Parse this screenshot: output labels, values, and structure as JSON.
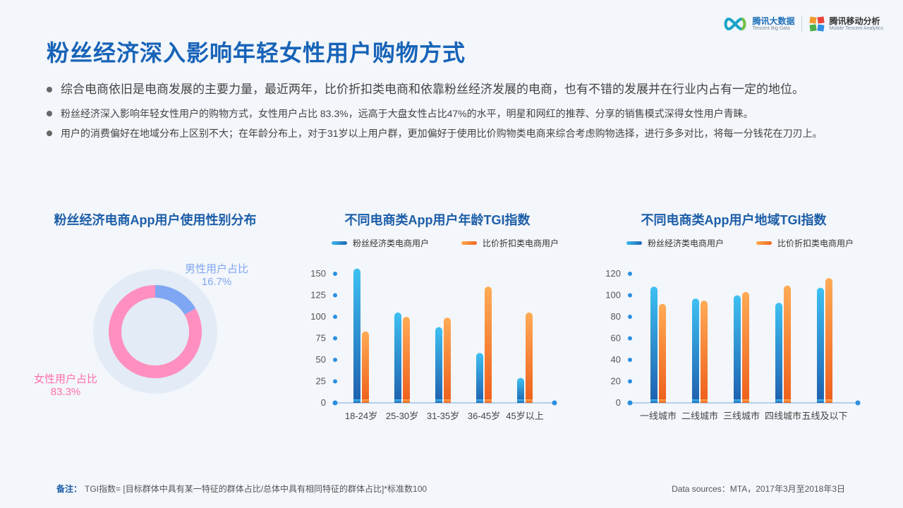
{
  "logos": {
    "tbd_main": "腾讯大数据",
    "tbd_sub": "Tencent Big Data",
    "mta_main": "腾讯移动分析",
    "mta_sub": "Mobile Tencent Analytics"
  },
  "page_title": "粉丝经济深入影响年轻女性用户购物方式",
  "bullets": [
    "综合电商依旧是电商发展的主要力量，最近两年，比价折扣类电商和依靠粉丝经济发展的电商，也有不错的发展并在行业内占有一定的地位。",
    "粉丝经济深入影响年轻女性用户的购物方式，女性用户占比 83.3%，远高于大盘女性占比47%的水平，明星和网红的推荐、分享的销售模式深得女性用户青睐。",
    "用户的消费偏好在地域分布上区别不大；在年龄分布上，对于31岁以上用户群，更加偏好于使用比价购物类电商来综合考虑购物选择，进行多多对比，将每一分钱花在刀刃上。"
  ],
  "colors": {
    "title": "#1763b8",
    "series_blue": "#2a8fd8",
    "series_orange": "#f5802e",
    "male": "#7fa6f2",
    "female": "#ff8fbf"
  },
  "chart_data": [
    {
      "type": "pie",
      "title": "粉丝经济电商App用户使用性别分布",
      "slices": [
        {
          "name": "男性用户占比",
          "value": 16.7,
          "value_label": "16.7%"
        },
        {
          "name": "女性用户占比",
          "value": 83.3,
          "value_label": "83.3%"
        }
      ]
    },
    {
      "type": "bar",
      "title": "不同电商类App用户年龄TGI指数",
      "categories": [
        "18-24岁",
        "25-30岁",
        "31-35岁",
        "36-45岁",
        "45岁以上"
      ],
      "series": [
        {
          "name": "粉丝经济类电商用户",
          "values": [
            156,
            105,
            88,
            58,
            29
          ]
        },
        {
          "name": "比价折扣类电商用户",
          "values": [
            83,
            100,
            99,
            135,
            105
          ]
        }
      ],
      "yticks": [
        "0",
        "25",
        "50",
        "75",
        "100",
        "125",
        "150"
      ],
      "ylim": [
        0,
        150
      ]
    },
    {
      "type": "bar",
      "title": "不同电商类App用户地域TGI指数",
      "categories": [
        "一线城市",
        "二线城市",
        "三线城市",
        "四线城市",
        "五线及以下"
      ],
      "series": [
        {
          "name": "粉丝经济类电商用户",
          "values": [
            108,
            97,
            100,
            93,
            107
          ]
        },
        {
          "name": "比价折扣类电商用户",
          "values": [
            92,
            95,
            103,
            109,
            116
          ]
        }
      ],
      "yticks": [
        "0",
        "20",
        "40",
        "60",
        "80",
        "100",
        "120"
      ],
      "ylim": [
        0,
        120
      ]
    }
  ],
  "footer": {
    "note_label": "备注：",
    "note_text": "TGI指数= [目标群体中具有某一特征的群体占比/总体中具有相同特征的群体占比]*标准数100",
    "source": "Data sources：MTA，2017年3月至2018年3日"
  }
}
